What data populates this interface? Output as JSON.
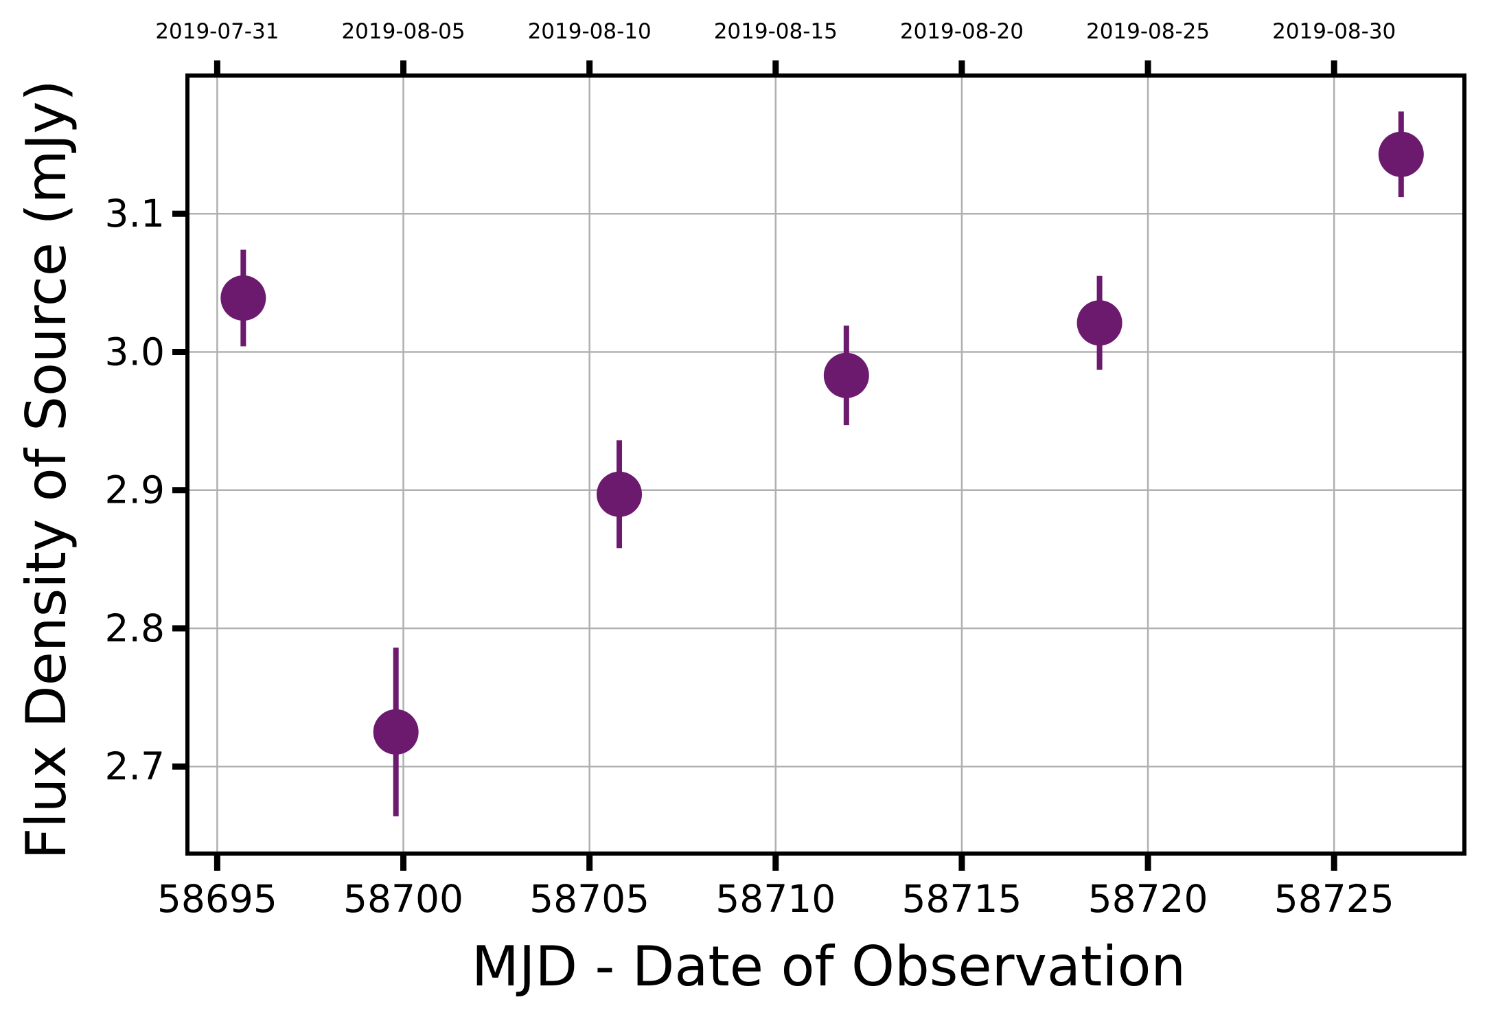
{
  "chart_data": {
    "type": "scatter",
    "title": "",
    "xlabel": "MJD - Date of Observation",
    "ylabel": "Flux Density of Source (mJy)",
    "xlim": [
      58694.2,
      58728.5
    ],
    "ylim": [
      2.637,
      3.2
    ],
    "grid": true,
    "x_ticks": [
      58695,
      58700,
      58705,
      58710,
      58715,
      58720,
      58725
    ],
    "x_tick_labels": [
      "58695",
      "58700",
      "58705",
      "58710",
      "58715",
      "58720",
      "58725"
    ],
    "y_ticks": [
      2.7,
      2.8,
      2.9,
      3.0,
      3.1
    ],
    "y_tick_labels": [
      "2.7",
      "2.8",
      "2.9",
      "3.0",
      "3.1"
    ],
    "top_axis": {
      "tick_labels": [
        "2019-07-31",
        "2019-08-05",
        "2019-08-10",
        "2019-08-15",
        "2019-08-20",
        "2019-08-25",
        "2019-08-30"
      ]
    },
    "marker_color": "#6b1a6e",
    "series": [
      {
        "x": [
          58695.7,
          58699.8,
          58705.8,
          58711.9,
          58718.7,
          58726.8
        ],
        "y": [
          3.039,
          2.725,
          2.897,
          2.983,
          3.021,
          3.143
        ],
        "yerr": [
          0.035,
          0.061,
          0.039,
          0.036,
          0.034,
          0.031
        ]
      }
    ]
  }
}
